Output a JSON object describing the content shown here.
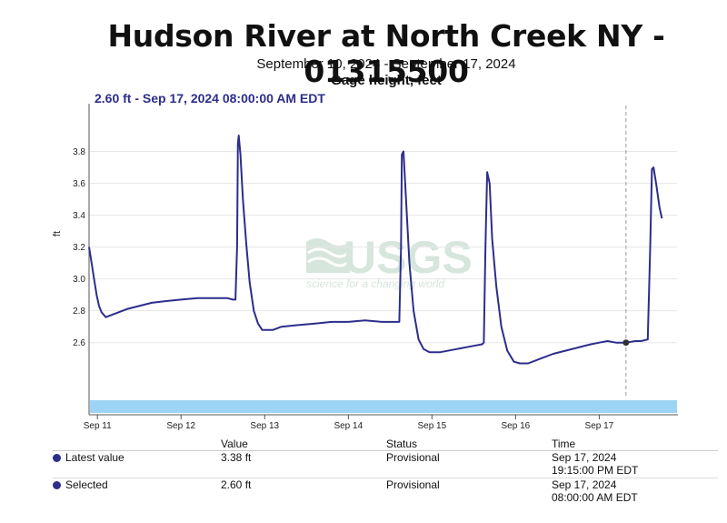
{
  "header": {
    "title": "Hudson River at North Creek NY - 01315500",
    "subtitle": "September 10, 2024 - September 17, 2024",
    "parameter": "Gage height, feet",
    "readout": "2.60 ft - Sep 17, 2024 08:00:00 AM EDT"
  },
  "watermark": {
    "text": "USGS",
    "tagline": "science for a changing world"
  },
  "chart_data": {
    "type": "line",
    "ylabel": "ft",
    "ylim": [
      2.25,
      4.1
    ],
    "yticks": [
      2.6,
      2.8,
      3.0,
      3.2,
      3.4,
      3.6,
      3.8
    ],
    "x_range_days": [
      10.9,
      17.93
    ],
    "xticks": [
      {
        "day": 11,
        "label": "Sep 11"
      },
      {
        "day": 12,
        "label": "Sep 12"
      },
      {
        "day": 13,
        "label": "Sep 13"
      },
      {
        "day": 14,
        "label": "Sep 14"
      },
      {
        "day": 15,
        "label": "Sep 15"
      },
      {
        "day": 16,
        "label": "Sep 16"
      },
      {
        "day": 17,
        "label": "Sep 17"
      }
    ],
    "grid": true,
    "series": [
      {
        "color": "#2d2d8c",
        "x": [
          10.9,
          10.93,
          10.96,
          10.99,
          11.02,
          11.05,
          11.1,
          11.2,
          11.35,
          11.5,
          11.65,
          11.8,
          12.0,
          12.2,
          12.4,
          12.55,
          12.62,
          12.65,
          12.67,
          12.68,
          12.69,
          12.71,
          12.74,
          12.78,
          12.82,
          12.87,
          12.92,
          12.97,
          13.1,
          13.2,
          13.4,
          13.6,
          13.8,
          14.0,
          14.2,
          14.4,
          14.58,
          14.61,
          14.63,
          14.64,
          14.66,
          14.69,
          14.73,
          14.78,
          14.84,
          14.9,
          14.97,
          15.1,
          15.3,
          15.5,
          15.6,
          15.62,
          15.64,
          15.66,
          15.69,
          15.72,
          15.77,
          15.83,
          15.9,
          15.98,
          16.05,
          16.15,
          16.3,
          16.45,
          16.6,
          16.75,
          16.9,
          17.0,
          17.1,
          17.2,
          17.3,
          17.32,
          17.43,
          17.5,
          17.58,
          17.61,
          17.63,
          17.65,
          17.68,
          17.72,
          17.75
        ],
        "y": [
          3.2,
          3.1,
          3.0,
          2.9,
          2.83,
          2.79,
          2.76,
          2.78,
          2.81,
          2.83,
          2.85,
          2.86,
          2.87,
          2.88,
          2.88,
          2.88,
          2.87,
          2.87,
          3.2,
          3.85,
          3.9,
          3.78,
          3.5,
          3.22,
          2.98,
          2.8,
          2.72,
          2.68,
          2.68,
          2.7,
          2.71,
          2.72,
          2.73,
          2.73,
          2.74,
          2.73,
          2.73,
          2.73,
          3.2,
          3.78,
          3.8,
          3.5,
          3.1,
          2.8,
          2.62,
          2.56,
          2.54,
          2.54,
          2.56,
          2.58,
          2.59,
          2.6,
          3.2,
          3.67,
          3.6,
          3.25,
          2.95,
          2.7,
          2.55,
          2.48,
          2.47,
          2.47,
          2.5,
          2.53,
          2.55,
          2.57,
          2.59,
          2.6,
          2.61,
          2.6,
          2.6,
          2.6,
          2.61,
          2.61,
          2.62,
          3.2,
          3.69,
          3.7,
          3.6,
          3.45,
          3.38
        ]
      }
    ],
    "selected_point": {
      "x": 17.32,
      "y": 2.6
    }
  },
  "table": {
    "headers": [
      "",
      "Value",
      "Status",
      "Time"
    ],
    "rows": [
      {
        "label": "Latest value",
        "value": "3.38 ft",
        "status": "Provisional",
        "date": "Sep 17, 2024",
        "time": "19:15:00 PM EDT"
      },
      {
        "label": "Selected",
        "value": "2.60 ft",
        "status": "Provisional",
        "date": "Sep 17, 2024",
        "time": "08:00:00 AM EDT"
      }
    ]
  }
}
